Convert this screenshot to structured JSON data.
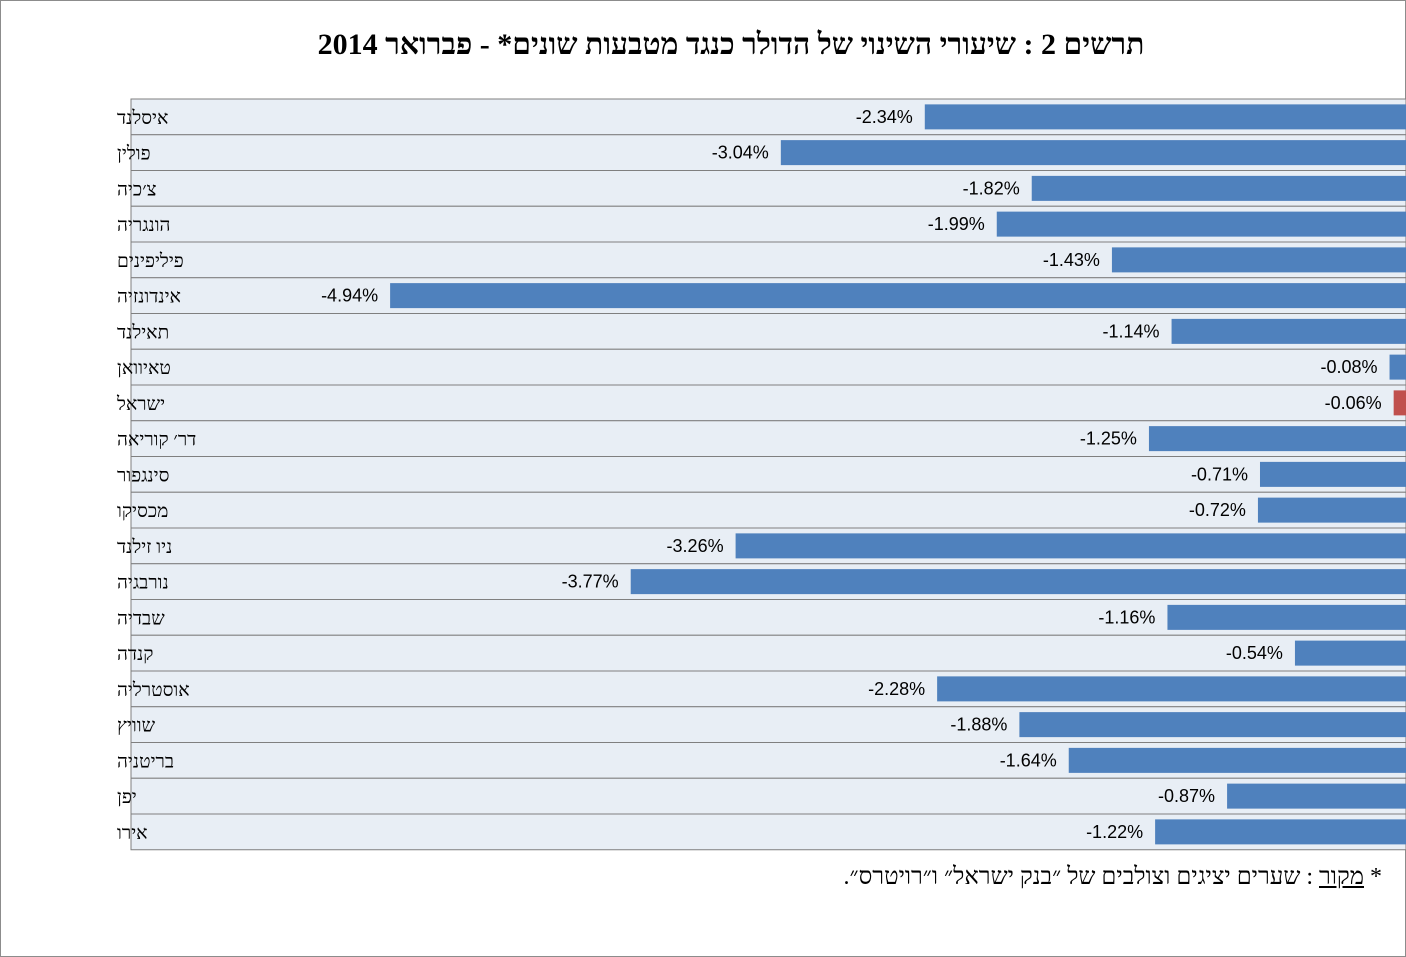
{
  "chart_data": {
    "type": "bar",
    "orientation": "horizontal",
    "title": "תרשים 2 : שיעורי השינוי של הדולר כנגד מטבעות שונים* - פברואר 2014",
    "categories": [
      "איסלנד",
      "פולין",
      "צ׳כיה",
      "הונגריה",
      "פיליפינים",
      "אינדונזיה",
      "תאילנד",
      "טאיוואן",
      "ישראל",
      "דר׳ קוריאה",
      "סינגפור",
      "מכסיקו",
      "ניו זילנד",
      "נורבגיה",
      "שבדיה",
      "קנדה",
      "אוסטרליה",
      "שוויץ",
      "בריטניה",
      "יפן",
      "אירו"
    ],
    "values": [
      -2.34,
      -3.04,
      -1.82,
      -1.99,
      -1.43,
      -4.94,
      -1.14,
      -0.08,
      -0.06,
      -1.25,
      -0.71,
      -0.72,
      -3.26,
      -3.77,
      -1.16,
      -0.54,
      -2.28,
      -1.88,
      -1.64,
      -0.87,
      -1.22
    ],
    "value_labels": [
      "-2.34%",
      "-3.04%",
      "-1.82%",
      "-1.99%",
      "-1.43%",
      "-4.94%",
      "-1.14%",
      "-0.08%",
      "-0.06%",
      "-1.25%",
      "-0.71%",
      "-0.72%",
      "-3.26%",
      "-3.77%",
      "-1.16%",
      "-0.54%",
      "-2.28%",
      "-1.88%",
      "-1.64%",
      "-0.87%",
      "-1.22%"
    ],
    "highlight_category": "ישראל",
    "xlim": [
      -6.2,
      0
    ],
    "grid": false,
    "legend": "none"
  },
  "colors": {
    "bar": "#4f81bd",
    "highlight": "#c0504d",
    "row_background": "#e8eef5"
  },
  "source_note": {
    "prefix": "*",
    "label": "מקור",
    "text": ": שערים יציגים וצולבים של ״בנק ישראל״ ו״רויטרס״."
  }
}
